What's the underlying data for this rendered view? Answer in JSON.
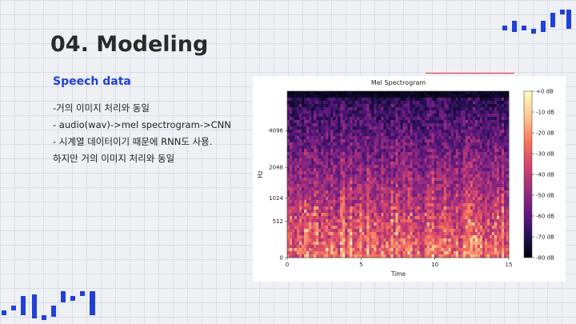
{
  "slide": {
    "title": "04. Modeling",
    "section_label": "Speech data",
    "bullets": [
      "-거의 이미지 처리와 동일",
      "- audio(wav)->mel spectrogram->CNN",
      "- 시계열 데이터이기 때문에 RNN도 사용.",
      "하지만 거의 이미지 처리와 동일"
    ]
  },
  "colors": {
    "accent_blue": "#2140d8",
    "red_line": "#e03a3a",
    "grid_background": "#eef0f4"
  },
  "chart_data": {
    "type": "heatmap",
    "title": "Mel Spectrogram",
    "xlabel": "Time",
    "ylabel": "Hz",
    "x_ticks": [
      "0",
      "5",
      "10",
      "15"
    ],
    "y_ticks": [
      "0",
      "512",
      "1024",
      "2048",
      "4096"
    ],
    "xlim": [
      0,
      15
    ],
    "y_scale": "mel",
    "colorbar": {
      "ticks": [
        "+0 dB",
        "-10 dB",
        "-20 dB",
        "-30 dB",
        "-40 dB",
        "-50 dB",
        "-60 dB",
        "-70 dB",
        "-80 dB"
      ],
      "range": [
        -80,
        0
      ],
      "colormap": "magma"
    },
    "grid": false
  }
}
